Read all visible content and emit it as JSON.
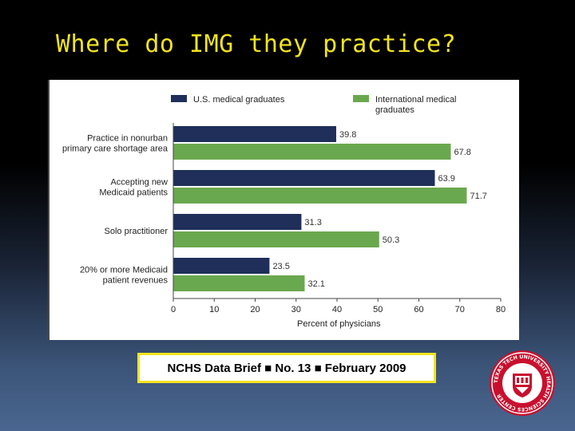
{
  "slide": {
    "title": "Where do IMG they practice?",
    "caption": "NCHS Data Brief ■ No. 13 ■ February 2009",
    "seal_text": "TEXAS TECH UNIVERSITY HEALTH SCIENCES CENTER",
    "colors": {
      "title": "#f2e41e",
      "caption_border": "#f2e41e",
      "seal": "#c8102e"
    }
  },
  "chart_data": {
    "type": "bar",
    "orientation": "horizontal",
    "categories": [
      [
        "Practice in nonurban",
        "primary care shortage area"
      ],
      [
        "Accepting new",
        "Medicaid patients"
      ],
      [
        "Solo practitioner"
      ],
      [
        "20% or more Medicaid",
        "patient revenues"
      ]
    ],
    "series": [
      {
        "name": "U.S. medical graduates",
        "color": "#1f2f5a",
        "values": [
          39.8,
          63.9,
          31.3,
          23.5
        ],
        "labels": [
          "39.8",
          "63.9",
          "31.3",
          "23.5"
        ]
      },
      {
        "name": [
          "International medical",
          "graduates"
        ],
        "color": "#6aa84f",
        "values": [
          67.8,
          71.7,
          50.3,
          32.1
        ],
        "labels": [
          "67.8",
          "71.7",
          "50.3",
          "32.1"
        ]
      }
    ],
    "xlabel": "Percent of physicians",
    "xlim": [
      0,
      80
    ],
    "xticks": [
      0,
      10,
      20,
      30,
      40,
      50,
      60,
      70,
      80
    ],
    "legend": "top",
    "grid": false
  }
}
